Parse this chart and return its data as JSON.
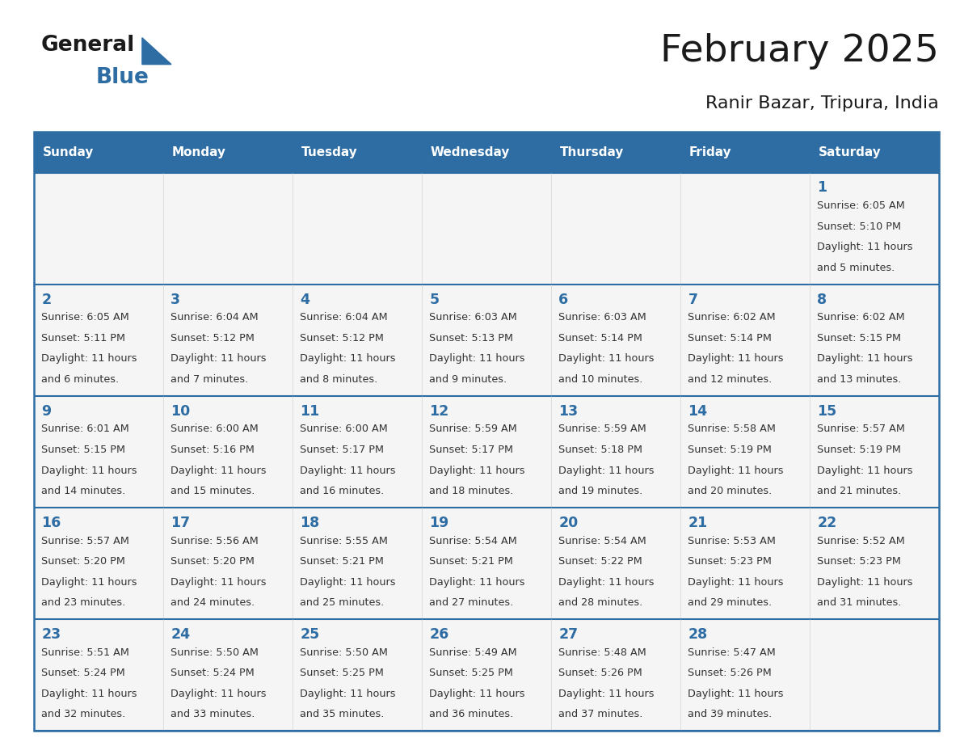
{
  "title": "February 2025",
  "subtitle": "Ranir Bazar, Tripura, India",
  "days_of_week": [
    "Sunday",
    "Monday",
    "Tuesday",
    "Wednesday",
    "Thursday",
    "Friday",
    "Saturday"
  ],
  "header_bg": "#2E6DA4",
  "header_text": "#FFFFFF",
  "cell_bg": "#F5F5F5",
  "day_num_color": "#2E6DA4",
  "text_color": "#333333",
  "border_color": "#2E6DA4",
  "calendar_data": [
    [
      null,
      null,
      null,
      null,
      null,
      null,
      {
        "day": 1,
        "sunrise": "6:05 AM",
        "sunset": "5:10 PM",
        "daylight_hrs": 11,
        "daylight_min": 5
      }
    ],
    [
      {
        "day": 2,
        "sunrise": "6:05 AM",
        "sunset": "5:11 PM",
        "daylight_hrs": 11,
        "daylight_min": 6
      },
      {
        "day": 3,
        "sunrise": "6:04 AM",
        "sunset": "5:12 PM",
        "daylight_hrs": 11,
        "daylight_min": 7
      },
      {
        "day": 4,
        "sunrise": "6:04 AM",
        "sunset": "5:12 PM",
        "daylight_hrs": 11,
        "daylight_min": 8
      },
      {
        "day": 5,
        "sunrise": "6:03 AM",
        "sunset": "5:13 PM",
        "daylight_hrs": 11,
        "daylight_min": 9
      },
      {
        "day": 6,
        "sunrise": "6:03 AM",
        "sunset": "5:14 PM",
        "daylight_hrs": 11,
        "daylight_min": 10
      },
      {
        "day": 7,
        "sunrise": "6:02 AM",
        "sunset": "5:14 PM",
        "daylight_hrs": 11,
        "daylight_min": 12
      },
      {
        "day": 8,
        "sunrise": "6:02 AM",
        "sunset": "5:15 PM",
        "daylight_hrs": 11,
        "daylight_min": 13
      }
    ],
    [
      {
        "day": 9,
        "sunrise": "6:01 AM",
        "sunset": "5:15 PM",
        "daylight_hrs": 11,
        "daylight_min": 14
      },
      {
        "day": 10,
        "sunrise": "6:00 AM",
        "sunset": "5:16 PM",
        "daylight_hrs": 11,
        "daylight_min": 15
      },
      {
        "day": 11,
        "sunrise": "6:00 AM",
        "sunset": "5:17 PM",
        "daylight_hrs": 11,
        "daylight_min": 16
      },
      {
        "day": 12,
        "sunrise": "5:59 AM",
        "sunset": "5:17 PM",
        "daylight_hrs": 11,
        "daylight_min": 18
      },
      {
        "day": 13,
        "sunrise": "5:59 AM",
        "sunset": "5:18 PM",
        "daylight_hrs": 11,
        "daylight_min": 19
      },
      {
        "day": 14,
        "sunrise": "5:58 AM",
        "sunset": "5:19 PM",
        "daylight_hrs": 11,
        "daylight_min": 20
      },
      {
        "day": 15,
        "sunrise": "5:57 AM",
        "sunset": "5:19 PM",
        "daylight_hrs": 11,
        "daylight_min": 21
      }
    ],
    [
      {
        "day": 16,
        "sunrise": "5:57 AM",
        "sunset": "5:20 PM",
        "daylight_hrs": 11,
        "daylight_min": 23
      },
      {
        "day": 17,
        "sunrise": "5:56 AM",
        "sunset": "5:20 PM",
        "daylight_hrs": 11,
        "daylight_min": 24
      },
      {
        "day": 18,
        "sunrise": "5:55 AM",
        "sunset": "5:21 PM",
        "daylight_hrs": 11,
        "daylight_min": 25
      },
      {
        "day": 19,
        "sunrise": "5:54 AM",
        "sunset": "5:21 PM",
        "daylight_hrs": 11,
        "daylight_min": 27
      },
      {
        "day": 20,
        "sunrise": "5:54 AM",
        "sunset": "5:22 PM",
        "daylight_hrs": 11,
        "daylight_min": 28
      },
      {
        "day": 21,
        "sunrise": "5:53 AM",
        "sunset": "5:23 PM",
        "daylight_hrs": 11,
        "daylight_min": 29
      },
      {
        "day": 22,
        "sunrise": "5:52 AM",
        "sunset": "5:23 PM",
        "daylight_hrs": 11,
        "daylight_min": 31
      }
    ],
    [
      {
        "day": 23,
        "sunrise": "5:51 AM",
        "sunset": "5:24 PM",
        "daylight_hrs": 11,
        "daylight_min": 32
      },
      {
        "day": 24,
        "sunrise": "5:50 AM",
        "sunset": "5:24 PM",
        "daylight_hrs": 11,
        "daylight_min": 33
      },
      {
        "day": 25,
        "sunrise": "5:50 AM",
        "sunset": "5:25 PM",
        "daylight_hrs": 11,
        "daylight_min": 35
      },
      {
        "day": 26,
        "sunrise": "5:49 AM",
        "sunset": "5:25 PM",
        "daylight_hrs": 11,
        "daylight_min": 36
      },
      {
        "day": 27,
        "sunrise": "5:48 AM",
        "sunset": "5:26 PM",
        "daylight_hrs": 11,
        "daylight_min": 37
      },
      {
        "day": 28,
        "sunrise": "5:47 AM",
        "sunset": "5:26 PM",
        "daylight_hrs": 11,
        "daylight_min": 39
      },
      null
    ]
  ]
}
